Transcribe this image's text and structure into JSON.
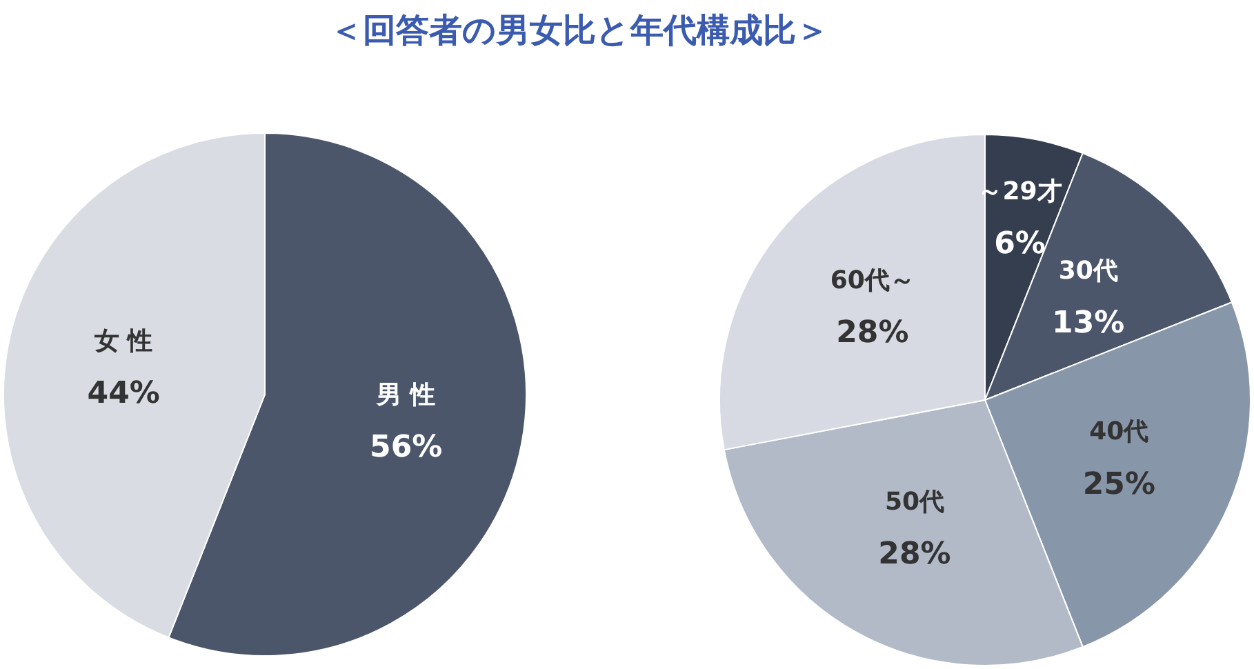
{
  "chart_data": [
    {
      "type": "pie",
      "title": "＜回答者の男女比と年代構成比＞",
      "categories": [
        "男 性",
        "女 性"
      ],
      "values": [
        56,
        44
      ],
      "colors": [
        "#4b566b",
        "#d9dce3"
      ],
      "value_labels": [
        "56%",
        "44%"
      ],
      "legend": false
    },
    {
      "type": "pie",
      "categories": [
        "～29才",
        "30代",
        "40代",
        "50代",
        "60代～"
      ],
      "values": [
        6,
        13,
        25,
        28,
        28
      ],
      "colors": [
        "#343e4e",
        "#4b566b",
        "#8896aa",
        "#b2bac8",
        "#d7dae2"
      ],
      "value_labels": [
        "6%",
        "13%",
        "25%",
        "28%",
        "28%"
      ],
      "legend": false
    }
  ]
}
